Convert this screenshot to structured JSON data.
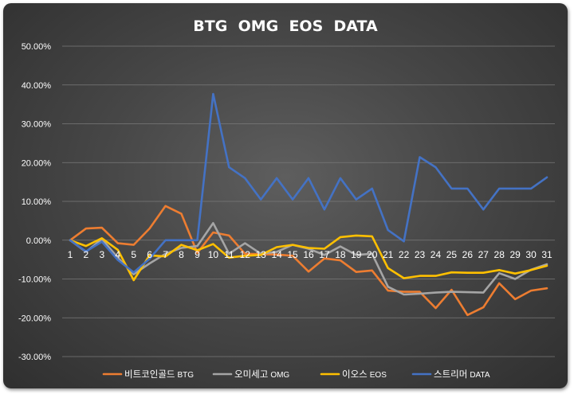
{
  "chart_data": {
    "type": "line",
    "title": "BTG  OMG  EOS  DATA",
    "x": [
      1,
      2,
      3,
      4,
      5,
      6,
      7,
      8,
      9,
      10,
      11,
      12,
      13,
      14,
      15,
      16,
      17,
      18,
      19,
      20,
      21,
      22,
      23,
      24,
      25,
      26,
      27,
      28,
      29,
      30,
      31
    ],
    "x_tick_labels": [
      "1",
      "2",
      "3",
      "4",
      "5",
      "6",
      "7",
      "8",
      "9",
      "10",
      "11",
      "12",
      "13",
      "14",
      "15",
      "16",
      "17",
      "18",
      "19",
      "20",
      "21",
      "22",
      "23",
      "24",
      "25",
      "26",
      "27",
      "28",
      "29",
      "30",
      "31"
    ],
    "ylim": [
      -30,
      50
    ],
    "y_tick_labels": [
      "50.00%",
      "40.00%",
      "30.00%",
      "20.00%",
      "10.00%",
      "0.00%",
      "-10.00%",
      "-20.00%",
      "-30.00%"
    ],
    "grid": "horizontal",
    "legend_position": "bottom",
    "series": [
      {
        "name": "비트코인골드",
        "name_suffix": "BTG",
        "color": "#ed7d31",
        "values": [
          0.0,
          3.0,
          3.2,
          -0.8,
          -1.2,
          3.0,
          8.8,
          6.8,
          -3.3,
          2.0,
          1.2,
          -3.5,
          -3.6,
          -3.7,
          -4.0,
          -8.1,
          -4.7,
          -5.2,
          -8.2,
          -7.8,
          -13.0,
          -13.3,
          -13.3,
          -17.5,
          -12.8,
          -19.3,
          -17.3,
          -11.1,
          -15.2,
          -13.0,
          -12.4
        ]
      },
      {
        "name": "오미세고",
        "name_suffix": "OMG",
        "color": "#a5a5a5",
        "values": [
          0.0,
          -3.0,
          0.3,
          -4.5,
          -8.8,
          -6.0,
          -3.5,
          -2.0,
          -1.5,
          4.4,
          -3.5,
          -0.8,
          -3.5,
          -3.0,
          -1.2,
          -2.2,
          -3.8,
          -1.6,
          -3.8,
          -3.5,
          -12.0,
          -14.0,
          -13.8,
          -13.5,
          -13.3,
          -13.4,
          -13.5,
          -8.5,
          -10.0,
          -7.6,
          -6.2
        ]
      },
      {
        "name": "이오스",
        "name_suffix": "EOS",
        "color": "#ffc000",
        "values": [
          0.0,
          -1.5,
          0.5,
          -2.5,
          -10.3,
          -3.9,
          -4.2,
          -1.2,
          -2.6,
          -1.0,
          -4.5,
          -4.0,
          -3.8,
          -1.8,
          -1.2,
          -2.0,
          -2.2,
          0.8,
          1.2,
          1.0,
          -7.2,
          -9.8,
          -9.2,
          -9.2,
          -8.3,
          -8.4,
          -8.4,
          -7.7,
          -8.6,
          -7.7,
          -6.6
        ]
      },
      {
        "name": "스트리머",
        "name_suffix": "DATA",
        "color": "#4472c4",
        "values": [
          0.0,
          -2.9,
          -0.4,
          -5.1,
          -8.3,
          -4.8,
          0.0,
          0.0,
          0.0,
          37.7,
          18.8,
          16.0,
          10.5,
          16.0,
          10.5,
          16.0,
          7.9,
          16.0,
          10.5,
          13.3,
          2.6,
          -0.3,
          21.4,
          18.8,
          13.3,
          13.3,
          7.9,
          13.3,
          13.3,
          13.3,
          16.2
        ]
      }
    ]
  }
}
